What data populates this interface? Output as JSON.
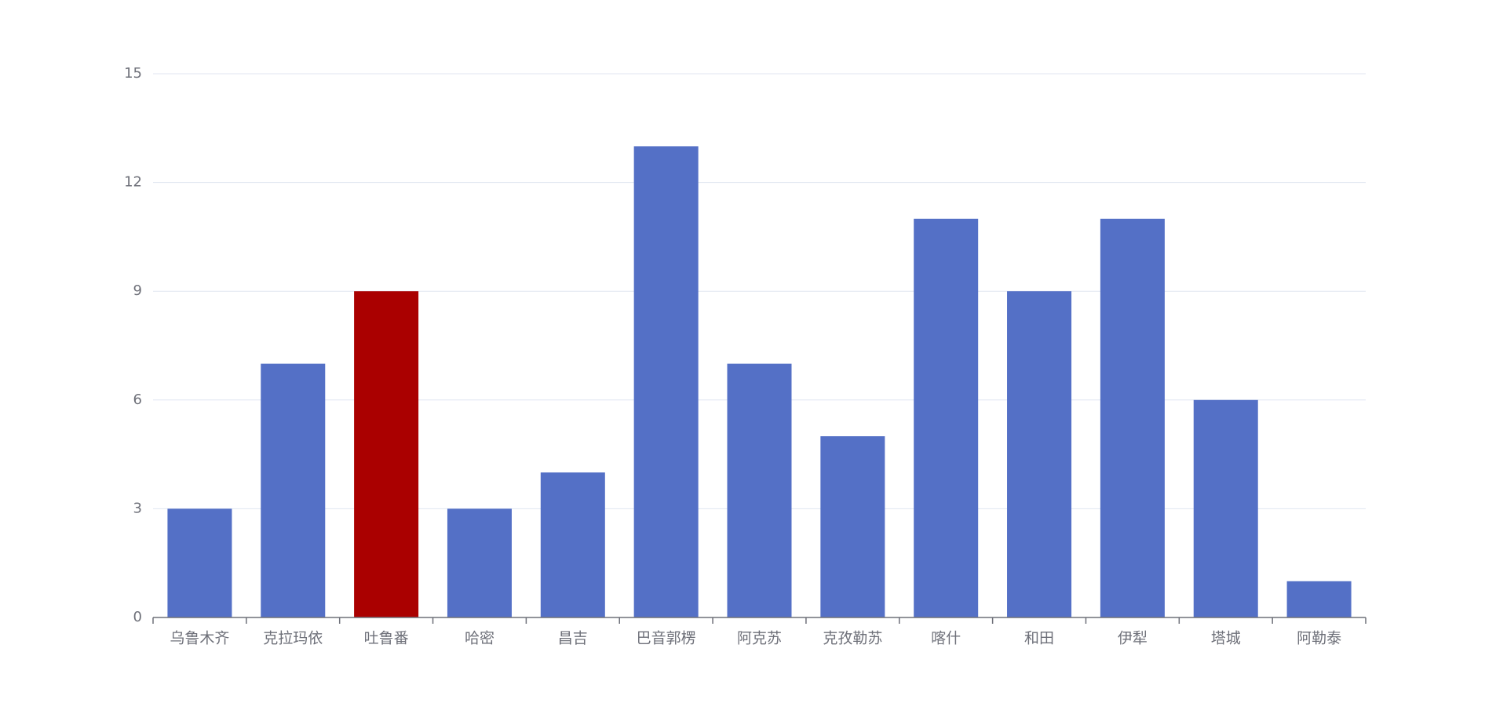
{
  "chart_data": {
    "type": "bar",
    "title": "",
    "xlabel": "",
    "ylabel": "",
    "categories": [
      "乌鲁木齐",
      "克拉玛依",
      "吐鲁番",
      "哈密",
      "昌吉",
      "巴音郭楞",
      "阿克苏",
      "克孜勒苏",
      "喀什",
      "和田",
      "伊犁",
      "塔城",
      "阿勒泰"
    ],
    "values": [
      3,
      7,
      9,
      3,
      4,
      13,
      7,
      5,
      11,
      9,
      11,
      6,
      1
    ],
    "highlight_index": 2,
    "ylim": [
      0,
      15
    ],
    "yticks": [
      0,
      3,
      6,
      9,
      12,
      15
    ],
    "grid": true,
    "legend": "none",
    "colors": {
      "bar": "#5470c6",
      "highlight": "#aa0000",
      "grid": "#e0e6f1",
      "axis": "#6e7079",
      "label": "#6e7079"
    }
  }
}
